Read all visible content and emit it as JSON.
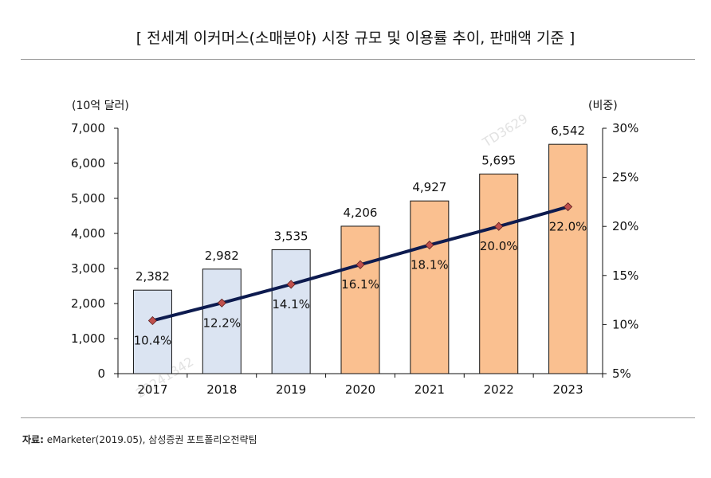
{
  "title": "[ 전세계 이커머스(소매분야) 시장 규모 및 이용률 추이, 판매액 기준 ]",
  "source": {
    "label": "자료:",
    "text": "eMarketer(2019.05), 삼성증권 포트폴리오전략팀"
  },
  "watermarks": [
    "TD3629",
    "20241342"
  ],
  "chart_data": {
    "type": "bar",
    "categories": [
      "2017",
      "2018",
      "2019",
      "2020",
      "2021",
      "2022",
      "2023"
    ],
    "series": [
      {
        "type": "bar",
        "axis": "left",
        "values": [
          2382,
          2982,
          3535,
          4206,
          4927,
          5695,
          6542
        ],
        "labels": [
          "2,382",
          "2,982",
          "3,535",
          "4,206",
          "4,927",
          "5,695",
          "6,542"
        ],
        "colors": [
          "#dbe4f2",
          "#dbe4f2",
          "#dbe4f2",
          "#fac090",
          "#fac090",
          "#fac090",
          "#fac090"
        ],
        "border": "#111111"
      },
      {
        "type": "line",
        "axis": "right",
        "values": [
          10.4,
          12.2,
          14.1,
          16.1,
          18.1,
          20.0,
          22.0
        ],
        "labels": [
          "10.4%",
          "12.2%",
          "14.1%",
          "16.1%",
          "18.1%",
          "20.0%",
          "22.0%"
        ],
        "color": "#0d1b4f",
        "marker_color": "#c0504d"
      }
    ],
    "left_axis": {
      "label": "(10억 달러)",
      "ylim": [
        0,
        7000
      ],
      "ticks": [
        0,
        1000,
        2000,
        3000,
        4000,
        5000,
        6000,
        7000
      ],
      "tick_labels": [
        "0",
        "1,000",
        "2,000",
        "3,000",
        "4,000",
        "5,000",
        "6,000",
        "7,000"
      ]
    },
    "right_axis": {
      "label": "(비중)",
      "ylim": [
        5,
        30
      ],
      "ticks": [
        5,
        10,
        15,
        20,
        25,
        30
      ],
      "tick_labels": [
        "5%",
        "10%",
        "15%",
        "20%",
        "25%",
        "30%"
      ]
    },
    "grid": false,
    "legend": "none"
  }
}
